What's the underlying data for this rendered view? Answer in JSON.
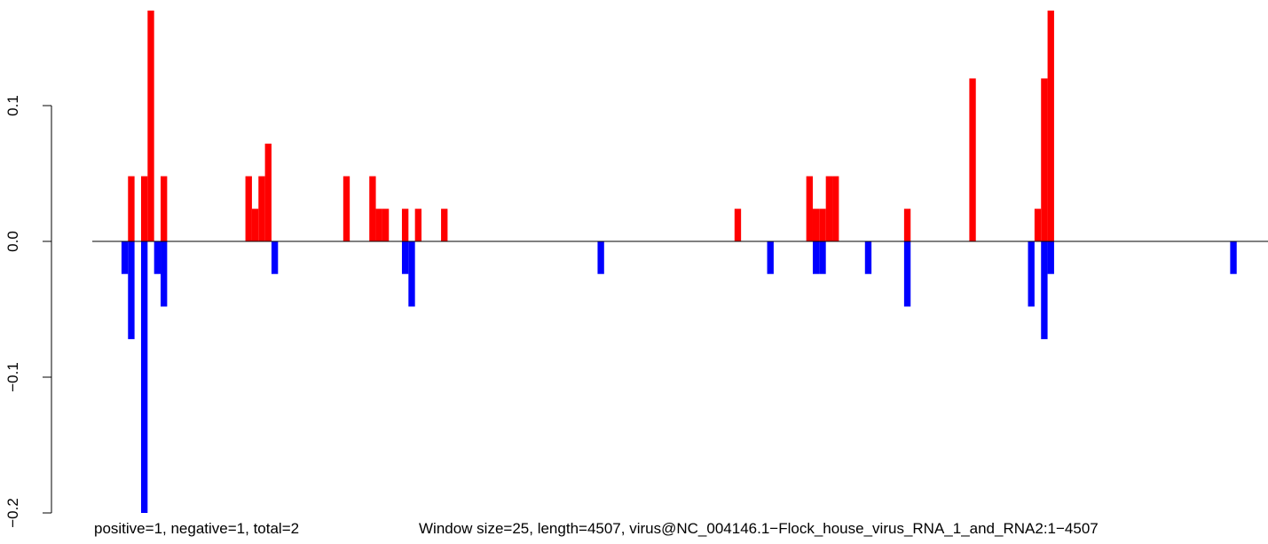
{
  "chart_data": {
    "type": "bar",
    "xlim": [
      0,
      4507
    ],
    "ylim": [
      -0.2,
      0.17
    ],
    "yticks": [
      -0.2,
      -0.1,
      0.0,
      0.1
    ],
    "ytick_labels": [
      "−0.2",
      "−0.1",
      "0.0",
      "0.1"
    ],
    "grid": false,
    "window_size": 25,
    "baseline": 0,
    "series": [
      {
        "sign": "positive",
        "color": "#ff0000",
        "points": [
          {
            "x": 137,
            "y": 0.048
          },
          {
            "x": 187,
            "y": 0.048
          },
          {
            "x": 212,
            "y": 0.17
          },
          {
            "x": 262,
            "y": 0.048
          },
          {
            "x": 587,
            "y": 0.048
          },
          {
            "x": 612,
            "y": 0.024
          },
          {
            "x": 637,
            "y": 0.048
          },
          {
            "x": 662,
            "y": 0.072
          },
          {
            "x": 962,
            "y": 0.048
          },
          {
            "x": 1062,
            "y": 0.048
          },
          {
            "x": 1087,
            "y": 0.024
          },
          {
            "x": 1112,
            "y": 0.024
          },
          {
            "x": 1187,
            "y": 0.024
          },
          {
            "x": 1237,
            "y": 0.024
          },
          {
            "x": 1337,
            "y": 0.024
          },
          {
            "x": 2462,
            "y": 0.024
          },
          {
            "x": 2737,
            "y": 0.048
          },
          {
            "x": 2762,
            "y": 0.024
          },
          {
            "x": 2787,
            "y": 0.024
          },
          {
            "x": 2812,
            "y": 0.048
          },
          {
            "x": 2837,
            "y": 0.048
          },
          {
            "x": 3112,
            "y": 0.024
          },
          {
            "x": 3362,
            "y": 0.12
          },
          {
            "x": 3612,
            "y": 0.024
          },
          {
            "x": 3637,
            "y": 0.12
          },
          {
            "x": 3662,
            "y": 0.17
          }
        ]
      },
      {
        "sign": "negative",
        "color": "#0000ff",
        "points": [
          {
            "x": 112,
            "y": -0.024
          },
          {
            "x": 137,
            "y": -0.072
          },
          {
            "x": 187,
            "y": -0.2
          },
          {
            "x": 237,
            "y": -0.024
          },
          {
            "x": 262,
            "y": -0.048
          },
          {
            "x": 687,
            "y": -0.024
          },
          {
            "x": 1187,
            "y": -0.024
          },
          {
            "x": 1212,
            "y": -0.048
          },
          {
            "x": 1937,
            "y": -0.024
          },
          {
            "x": 2587,
            "y": -0.024
          },
          {
            "x": 2762,
            "y": -0.024
          },
          {
            "x": 2787,
            "y": -0.024
          },
          {
            "x": 2962,
            "y": -0.024
          },
          {
            "x": 3112,
            "y": -0.048
          },
          {
            "x": 3587,
            "y": -0.048
          },
          {
            "x": 3637,
            "y": -0.072
          },
          {
            "x": 3662,
            "y": -0.024
          },
          {
            "x": 4362,
            "y": -0.024
          }
        ]
      }
    ],
    "annotations": {
      "left": "positive=1, negative=1, total=2",
      "right": "Window size=25, length=4507, virus@NC_004146.1−Flock_house_virus_RNA_1_and_RNA2:1−4507"
    }
  }
}
